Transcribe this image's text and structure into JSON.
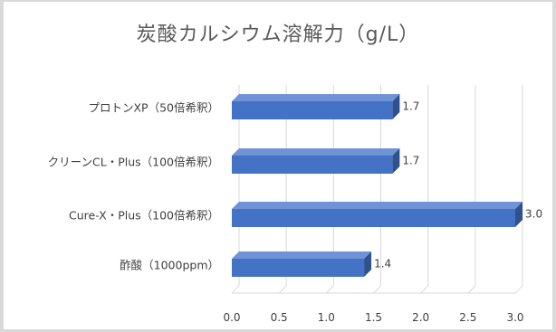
{
  "chart_data": {
    "type": "bar",
    "orientation": "horizontal",
    "style": "3d-clustered-bar",
    "title": "炭酸カルシウム溶解力（g/L）",
    "categories": [
      "プロトンXP（50倍希釈）",
      "クリーンCL・Plus（100倍希釈）",
      "Cure-X・Plus（100倍希釈）",
      "酢酸（1000ppm）"
    ],
    "values": [
      1.7,
      1.7,
      3.0,
      1.4
    ],
    "data_labels": [
      "1.7",
      "1.7",
      "3.0",
      "1.4"
    ],
    "x_ticks": [
      "0.0",
      "0.5",
      "1.0",
      "1.5",
      "2.0",
      "2.5",
      "3.0"
    ],
    "xlim": [
      0,
      3.0
    ],
    "grid": true,
    "legend": "none",
    "colors": {
      "bar_front": "#4472c4",
      "bar_top": "#6f93d6",
      "bar_side": "#2f528f",
      "grid": "#d9d9d9",
      "text": "#404040"
    }
  }
}
